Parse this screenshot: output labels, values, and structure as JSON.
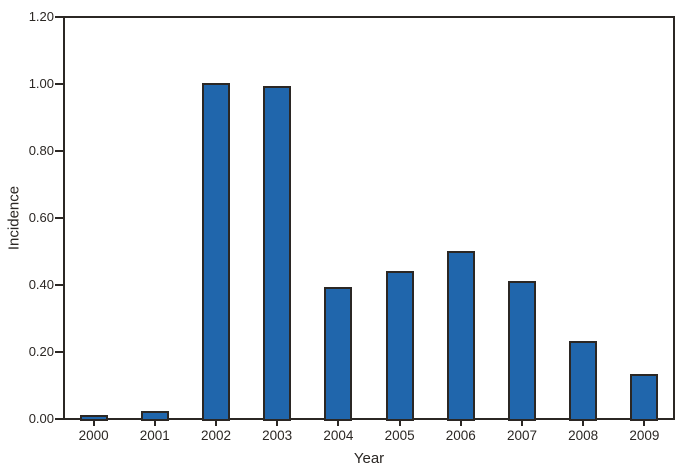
{
  "chart_data": {
    "type": "bar",
    "categories": [
      "2000",
      "2001",
      "2002",
      "2003",
      "2004",
      "2005",
      "2006",
      "2007",
      "2008",
      "2009"
    ],
    "values": [
      0.01,
      0.02,
      1.0,
      0.99,
      0.39,
      0.44,
      0.5,
      0.41,
      0.23,
      0.13
    ],
    "title": "",
    "xlabel": "Year",
    "ylabel": "Incidence",
    "ylim": [
      0,
      1.2
    ],
    "yticks": [
      0.0,
      0.2,
      0.4,
      0.6,
      0.8,
      1.0,
      1.2
    ],
    "ytick_labels": [
      "0.00",
      "0.20",
      "0.40",
      "0.60",
      "0.80",
      "1.00",
      "1.20"
    ],
    "grid": false,
    "legend": "none",
    "frame": "full-box",
    "colors": {
      "bar_fill": "#2066ac",
      "bar_edge": "#2b2724",
      "axis_line": "#2b2724",
      "text": "#2b2724",
      "background": "#ffffff"
    }
  }
}
